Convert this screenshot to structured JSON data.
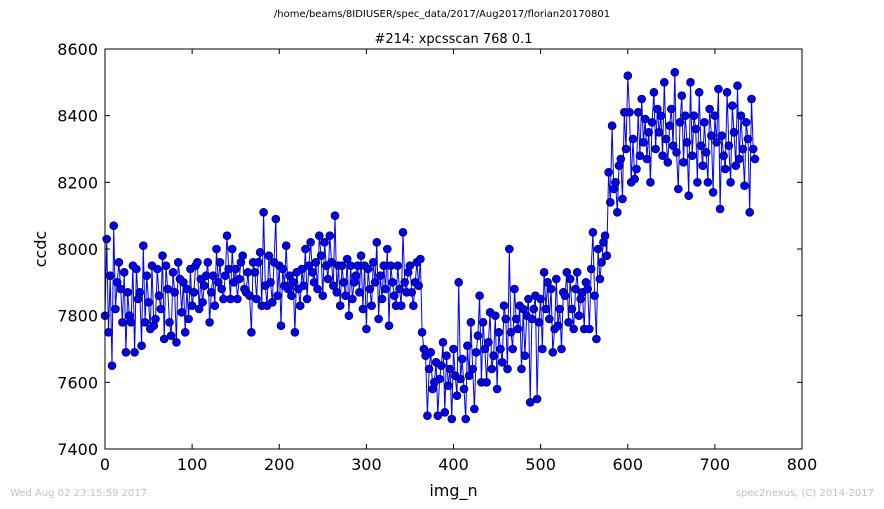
{
  "figure": {
    "suptitle": "/home/beams/8IDIUSER/spec_data/2017/Aug2017/florian20170801",
    "timestamp": "Wed Aug 02 23:15:59 2017",
    "credit": "spec2nexus, (C) 2014-2017"
  },
  "colors": {
    "series": "#0000ff",
    "axes": "#000000",
    "stamp": "#c2c2c2"
  },
  "chart_data": {
    "type": "line",
    "title": "#214: xpcsscan 768 0.1",
    "xlabel": "img_n",
    "ylabel": "ccdc",
    "xlim": [
      0,
      800
    ],
    "ylim": [
      7400,
      8600
    ],
    "xticks": [
      0,
      100,
      200,
      300,
      400,
      500,
      600,
      700,
      800
    ],
    "yticks": [
      7400,
      7600,
      7800,
      8000,
      8200,
      8400,
      8600
    ],
    "grid": false,
    "marker": "circle",
    "series": [
      {
        "name": "",
        "x_start": 0,
        "x_step": 2,
        "y": [
          7800,
          8030,
          7750,
          7920,
          7650,
          8070,
          7820,
          7900,
          7960,
          7880,
          7780,
          7930,
          7690,
          7870,
          7800,
          7780,
          7950,
          7690,
          7940,
          7850,
          7870,
          7710,
          8010,
          7780,
          7920,
          7840,
          7760,
          7950,
          7770,
          7790,
          7940,
          7860,
          7820,
          7980,
          7730,
          7950,
          7880,
          7780,
          7740,
          7930,
          7870,
          7720,
          7960,
          7910,
          7810,
          7900,
          7750,
          7880,
          7790,
          7940,
          7830,
          7870,
          7950,
          7960,
          7820,
          7910,
          7840,
          7890,
          7920,
          7960,
          7780,
          7870,
          7920,
          7830,
          8000,
          7900,
          7960,
          7880,
          7850,
          7920,
          8040,
          7940,
          7850,
          8000,
          7900,
          7940,
          7850,
          7910,
          7960,
          7980,
          7880,
          7870,
          7930,
          7860,
          7750,
          7960,
          7930,
          7850,
          7960,
          7990,
          7830,
          8110,
          7890,
          7830,
          7980,
          7900,
          7840,
          7960,
          8090,
          7860,
          7950,
          7770,
          7940,
          7890,
          8010,
          7880,
          7920,
          7860,
          7900,
          7750,
          7930,
          7880,
          7830,
          7940,
          7890,
          8000,
          7850,
          7950,
          8020,
          7930,
          7900,
          7960,
          7880,
          8040,
          7980,
          7860,
          8020,
          7950,
          7910,
          8040,
          7960,
          7890,
          8100,
          7870,
          7950,
          7830,
          7950,
          7900,
          7860,
          7970,
          7800,
          7950,
          7850,
          7900,
          7920,
          7950,
          7870,
          7980,
          7820,
          7950,
          7760,
          7940,
          7880,
          7830,
          7960,
          7900,
          8020,
          7790,
          7920,
          7850,
          7950,
          7880,
          8000,
          7770,
          7950,
          7900,
          7860,
          7830,
          7950,
          7880,
          7830,
          8050,
          7900,
          7870,
          7930,
          7950,
          7870,
          7830,
          7900,
          7960,
          7890,
          7970,
          7750,
          7700,
          7680,
          7500,
          7640,
          7690,
          7580,
          7600,
          7660,
          7500,
          7610,
          7650,
          7720,
          7510,
          7680,
          7590,
          7640,
          7490,
          7700,
          7620,
          7560,
          7900,
          7610,
          7670,
          7580,
          7490,
          7710,
          7620,
          7780,
          7640,
          7520,
          7690,
          7740,
          7860,
          7600,
          7780,
          7700,
          7600,
          7720,
          7810,
          7640,
          7680,
          7800,
          7580,
          7750,
          7700,
          7660,
          7830,
          7790,
          7640,
          8000,
          7750,
          7700,
          7880,
          7790,
          7760,
          7830,
          7640,
          7820,
          7680,
          7800,
          7850,
          7540,
          7790,
          7820,
          7860,
          7550,
          7780,
          7850,
          7700,
          7930,
          7820,
          7900,
          7790,
          7880,
          7690,
          7760,
          7910,
          7770,
          7820,
          7700,
          7870,
          7860,
          7930,
          7780,
          7910,
          7820,
          7760,
          7880,
          7930,
          7800,
          7850,
          7870,
          7760,
          7900,
          7880,
          7760,
          7940,
          8050,
          7860,
          7730,
          8000,
          7910,
          7960,
          8020,
          8040,
          7980,
          8230,
          8140,
          8370,
          8180,
          8200,
          8110,
          8250,
          8270,
          8150,
          8410,
          8300,
          8520,
          8410,
          8200,
          8330,
          8210,
          8240,
          8410,
          8280,
          8450,
          8320,
          8390,
          8270,
          8350,
          8200,
          8380,
          8470,
          8300,
          8420,
          8350,
          8400,
          8280,
          8500,
          8330,
          8260,
          8370,
          8420,
          8310,
          8530,
          8290,
          8180,
          8380,
          8460,
          8260,
          8400,
          8320,
          8160,
          8500,
          8280,
          8400,
          8360,
          8200,
          8470,
          8310,
          8250,
          8380,
          8290,
          8200,
          8420,
          8340,
          8170,
          8400,
          8320,
          8480,
          8120,
          8340,
          8280,
          8240,
          8470,
          8310,
          8200,
          8430,
          8350,
          8250,
          8490,
          8270,
          8400,
          8300,
          8190,
          8380,
          8330,
          8110,
          8450,
          8300,
          8270
        ]
      }
    ]
  }
}
